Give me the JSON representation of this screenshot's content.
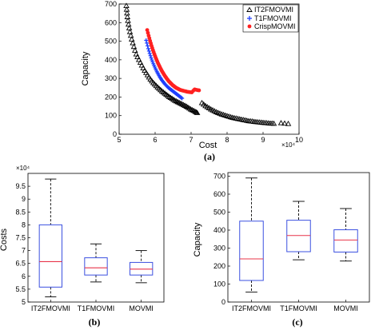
{
  "chart_data": [
    {
      "type": "scatter",
      "panel_label": "(a)",
      "xlabel": "Cost",
      "ylabel": "Capacity",
      "x_exponent": "×10⁴",
      "xlim": [
        5,
        10
      ],
      "ylim": [
        0,
        700
      ],
      "xticks": [
        "5",
        "6",
        "7",
        "8",
        "9",
        "10"
      ],
      "yticks": [
        "0",
        "100",
        "200",
        "300",
        "400",
        "500",
        "600",
        "700"
      ],
      "grid": false,
      "legend_position": "top-right",
      "colors": {
        "IT2FMOVMI": "#000000",
        "T1FMOVMI": "#1f3fff",
        "CrispMOVMI": "#ff2020"
      },
      "series": [
        {
          "name": "IT2FMOVMI",
          "marker": "open-triangle",
          "color": "#000000",
          "points": [
            [
              52000,
              690
            ],
            [
              52100,
              670
            ],
            [
              52200,
              650
            ],
            [
              52300,
              630
            ],
            [
              52450,
              610
            ],
            [
              52600,
              590
            ],
            [
              52800,
              570
            ],
            [
              53000,
              550
            ],
            [
              53250,
              530
            ],
            [
              53500,
              510
            ],
            [
              53800,
              490
            ],
            [
              54100,
              470
            ],
            [
              54400,
              450
            ],
            [
              54750,
              430
            ],
            [
              55100,
              415
            ],
            [
              55500,
              400
            ],
            [
              55900,
              385
            ],
            [
              56300,
              370
            ],
            [
              56700,
              355
            ],
            [
              57100,
              342
            ],
            [
              57500,
              330
            ],
            [
              57900,
              318
            ],
            [
              58300,
              306
            ],
            [
              58700,
              295
            ],
            [
              59100,
              285
            ],
            [
              59500,
              276
            ],
            [
              59900,
              268
            ],
            [
              60300,
              260
            ],
            [
              60700,
              252
            ],
            [
              61100,
              245
            ],
            [
              61500,
              238
            ],
            [
              61900,
              231
            ],
            [
              62300,
              225
            ],
            [
              62700,
              219
            ],
            [
              63100,
              213
            ],
            [
              63500,
              207
            ],
            [
              63900,
              201
            ],
            [
              64300,
              196
            ],
            [
              64700,
              191
            ],
            [
              65100,
              186
            ],
            [
              65500,
              181
            ],
            [
              65900,
              177
            ],
            [
              66300,
              173
            ],
            [
              66700,
              169
            ],
            [
              67100,
              165
            ],
            [
              67500,
              161
            ],
            [
              67900,
              157
            ],
            [
              68300,
              153
            ],
            [
              68700,
              149
            ],
            [
              69100,
              144
            ],
            [
              69500,
              139
            ],
            [
              69900,
              134
            ],
            [
              70300,
              130
            ],
            [
              70700,
              126
            ],
            [
              71100,
              122
            ],
            [
              71400,
              118
            ],
            [
              71700,
              115
            ],
            [
              73000,
              168
            ],
            [
              73500,
              160
            ],
            [
              74000,
              152
            ],
            [
              74500,
              146
            ],
            [
              75000,
              140
            ],
            [
              75500,
              134
            ],
            [
              76000,
              129
            ],
            [
              76500,
              124
            ],
            [
              77000,
              119
            ],
            [
              77500,
              115
            ],
            [
              78000,
              111
            ],
            [
              78500,
              107
            ],
            [
              79000,
              104
            ],
            [
              79500,
              101
            ],
            [
              80000,
              98
            ],
            [
              80500,
              95
            ],
            [
              81000,
              92
            ],
            [
              81500,
              89
            ],
            [
              82000,
              87
            ],
            [
              82500,
              85
            ],
            [
              83000,
              83
            ],
            [
              83500,
              81
            ],
            [
              84000,
              79
            ],
            [
              84500,
              77
            ],
            [
              85000,
              75
            ],
            [
              85500,
              73
            ],
            [
              86000,
              71
            ],
            [
              86500,
              70
            ],
            [
              87000,
              69
            ],
            [
              87500,
              67
            ],
            [
              88000,
              66
            ],
            [
              88500,
              65
            ],
            [
              89000,
              64
            ],
            [
              89500,
              63
            ],
            [
              90000,
              62
            ],
            [
              90500,
              61
            ],
            [
              91000,
              60
            ],
            [
              91500,
              59
            ],
            [
              92000,
              58
            ],
            [
              92500,
              58
            ],
            [
              93000,
              57
            ],
            [
              95000,
              60
            ],
            [
              96000,
              58
            ],
            [
              97000,
              56
            ]
          ]
        },
        {
          "name": "T1FMOVMI",
          "marker": "plus",
          "color": "#1f3fff",
          "points": [
            [
              57500,
              505
            ],
            [
              57700,
              490
            ],
            [
              57900,
              475
            ],
            [
              58100,
              460
            ],
            [
              58300,
              447
            ],
            [
              58500,
              434
            ],
            [
              58700,
              422
            ],
            [
              58900,
              410
            ],
            [
              59100,
              399
            ],
            [
              59300,
              389
            ],
            [
              59500,
              379
            ],
            [
              59700,
              370
            ],
            [
              59900,
              361
            ],
            [
              60100,
              352
            ],
            [
              60300,
              344
            ],
            [
              60500,
              336
            ],
            [
              60700,
              329
            ],
            [
              60900,
              322
            ],
            [
              61100,
              315
            ],
            [
              61300,
              308
            ],
            [
              61500,
              302
            ],
            [
              61700,
              296
            ],
            [
              61900,
              290
            ],
            [
              62100,
              285
            ],
            [
              62300,
              280
            ],
            [
              62500,
              275
            ],
            [
              62700,
              270
            ],
            [
              62900,
              266
            ],
            [
              63100,
              262
            ],
            [
              63300,
              258
            ],
            [
              63500,
              254
            ],
            [
              63700,
              250
            ],
            [
              63900,
              247
            ],
            [
              64100,
              244
            ],
            [
              64300,
              241
            ],
            [
              64500,
              238
            ],
            [
              64700,
              235
            ],
            [
              64900,
              232
            ],
            [
              65100,
              229
            ],
            [
              65300,
              226
            ],
            [
              65500,
              223
            ],
            [
              65700,
              220
            ],
            [
              65900,
              217
            ],
            [
              66100,
              214
            ],
            [
              66300,
              211
            ],
            [
              66500,
              208
            ],
            [
              66700,
              205
            ],
            [
              66900,
              202
            ],
            [
              67100,
              199
            ],
            [
              67300,
              196
            ],
            [
              67500,
              193
            ]
          ]
        },
        {
          "name": "CrispMOVMI",
          "marker": "filled-circle",
          "color": "#ff2020",
          "points": [
            [
              57800,
              560
            ],
            [
              58000,
              545
            ],
            [
              58200,
              530
            ],
            [
              58400,
              516
            ],
            [
              58600,
              502
            ],
            [
              58800,
              489
            ],
            [
              59000,
              476
            ],
            [
              59200,
              464
            ],
            [
              59400,
              452
            ],
            [
              59600,
              441
            ],
            [
              59800,
              430
            ],
            [
              60000,
              420
            ],
            [
              60200,
              410
            ],
            [
              60400,
              400
            ],
            [
              60600,
              391
            ],
            [
              60800,
              382
            ],
            [
              61000,
              374
            ],
            [
              61200,
              366
            ],
            [
              61400,
              358
            ],
            [
              61600,
              350
            ],
            [
              61800,
              343
            ],
            [
              62000,
              336
            ],
            [
              62200,
              330
            ],
            [
              62400,
              323
            ],
            [
              62600,
              317
            ],
            [
              62800,
              311
            ],
            [
              63000,
              306
            ],
            [
              63200,
              300
            ],
            [
              63400,
              295
            ],
            [
              63600,
              290
            ],
            [
              63800,
              285
            ],
            [
              64000,
              281
            ],
            [
              64200,
              277
            ],
            [
              64400,
              273
            ],
            [
              64600,
              269
            ],
            [
              64800,
              265
            ],
            [
              65000,
              262
            ],
            [
              65200,
              259
            ],
            [
              65400,
              256
            ],
            [
              65600,
              253
            ],
            [
              65800,
              250
            ],
            [
              66000,
              248
            ],
            [
              66200,
              246
            ],
            [
              66400,
              244
            ],
            [
              66600,
              242
            ],
            [
              66800,
              240
            ],
            [
              67000,
              238
            ],
            [
              67400,
              236
            ],
            [
              67800,
              234
            ],
            [
              68200,
              232
            ],
            [
              68600,
              230
            ],
            [
              69000,
              228
            ],
            [
              69400,
              227
            ],
            [
              69800,
              226
            ],
            [
              70200,
              225
            ],
            [
              70600,
              234
            ],
            [
              71000,
              241
            ],
            [
              71400,
              239
            ],
            [
              71800,
              237
            ],
            [
              72200,
              236
            ]
          ]
        }
      ]
    },
    {
      "type": "boxplot",
      "panel_label": "(b)",
      "xlabel": "",
      "ylabel": "Costs",
      "y_exponent": "×10⁴",
      "ylim": [
        50000,
        100000
      ],
      "yticks": [
        "5",
        "5.5",
        "6",
        "6.5",
        "7",
        "7.5",
        "8",
        "8.5",
        "9",
        "9.5"
      ],
      "categories": [
        "IT2FMOVMI",
        "T1FMOVMI",
        "MOVMI"
      ],
      "boxes": [
        {
          "min": 52000,
          "q1": 55800,
          "median": 65700,
          "q3": 80000,
          "max": 97800
        },
        {
          "min": 57800,
          "q1": 60500,
          "median": 63300,
          "q3": 67200,
          "max": 72600
        },
        {
          "min": 57500,
          "q1": 60500,
          "median": 62800,
          "q3": 65400,
          "max": 70000
        }
      ],
      "colors": {
        "box": "#3b50e0",
        "median": "#e8344a",
        "whisker": "#000000"
      }
    },
    {
      "type": "boxplot",
      "panel_label": "(c)",
      "xlabel": "",
      "ylabel": "Capacity",
      "ylim": [
        0,
        720
      ],
      "yticks": [
        "0",
        "100",
        "200",
        "300",
        "400",
        "500",
        "600",
        "700"
      ],
      "categories": [
        "IT2FMOVMI",
        "T1FMOVMI",
        "MOVMI"
      ],
      "boxes": [
        {
          "min": 55,
          "q1": 120,
          "median": 240,
          "q3": 450,
          "max": 690
        },
        {
          "min": 235,
          "q1": 280,
          "median": 370,
          "q3": 455,
          "max": 560
        },
        {
          "min": 228,
          "q1": 278,
          "median": 345,
          "q3": 402,
          "max": 520
        }
      ],
      "colors": {
        "box": "#3b50e0",
        "median": "#e8344a",
        "whisker": "#000000"
      }
    }
  ]
}
